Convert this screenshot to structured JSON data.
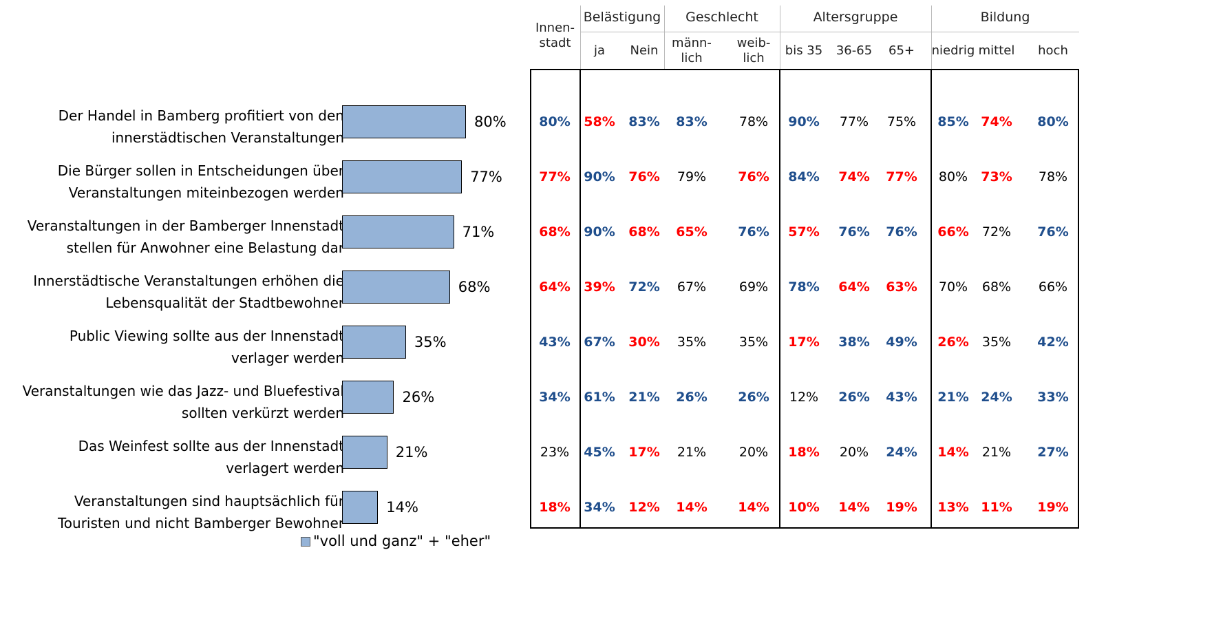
{
  "chart_data": {
    "type": "bar",
    "orientation": "horizontal",
    "categories": [
      "Der Handel in Bamberg profitiert von den\ninnerstädtischen Veranstaltungen",
      "Die Bürger sollen in Entscheidungen über\nVeranstaltungen miteinbezogen werden",
      "Veranstaltungen in der Bamberger Innenstadt\nstellen für Anwohner eine Belastung dar",
      "Innerstädtische Veranstaltungen erhöhen die\nLebensqualität der Stadtbewohner",
      "Public Viewing sollte aus der Innenstadt\nverlager werden",
      "Veranstaltungen wie das Jazz- und Bluefestival\nsollten verkürzt werden",
      "Das Weinfest sollte aus der Innenstadt\nverlagert werden",
      "Veranstaltungen sind hauptsächlich für\nTouristen und nicht Bamberger Bewohner"
    ],
    "series": [
      {
        "name": "\"voll und ganz\" + \"eher\"",
        "color": "#95b3d7",
        "values": [
          80,
          77,
          71,
          68,
          35,
          26,
          21,
          14
        ],
        "value_labels": [
          "80%",
          "77%",
          "71%",
          "68%",
          "35%",
          "26%",
          "21%",
          "14%"
        ]
      }
    ],
    "xlim": [
      -13,
      80
    ]
  },
  "table": {
    "corner": "Innen-\nstadt",
    "groups": [
      {
        "label": "Belästigung",
        "columns": [
          "ja",
          "Nein"
        ]
      },
      {
        "label": "Geschlecht",
        "columns": [
          "männ-\nlich",
          "weib-\nlich"
        ]
      },
      {
        "label": "Altersgruppe",
        "columns": [
          "bis 35",
          "36-65",
          "65+"
        ]
      },
      {
        "label": "Bildung",
        "columns": [
          "niedrig",
          "mittel",
          "hoch"
        ]
      }
    ],
    "rows": [
      [
        "80%",
        "58%",
        "83%",
        "83%",
        "78%",
        "90%",
        "77%",
        "75%",
        "85%",
        "74%",
        "80%"
      ],
      [
        "77%",
        "90%",
        "76%",
        "79%",
        "76%",
        "84%",
        "74%",
        "77%",
        "80%",
        "73%",
        "78%"
      ],
      [
        "68%",
        "90%",
        "68%",
        "65%",
        "76%",
        "57%",
        "76%",
        "76%",
        "66%",
        "72%",
        "76%"
      ],
      [
        "64%",
        "39%",
        "72%",
        "67%",
        "69%",
        "78%",
        "64%",
        "63%",
        "70%",
        "68%",
        "66%"
      ],
      [
        "43%",
        "67%",
        "30%",
        "35%",
        "35%",
        "17%",
        "38%",
        "49%",
        "26%",
        "35%",
        "42%"
      ],
      [
        "34%",
        "61%",
        "21%",
        "26%",
        "26%",
        "12%",
        "26%",
        "43%",
        "21%",
        "24%",
        "33%"
      ],
      [
        "23%",
        "45%",
        "17%",
        "21%",
        "20%",
        "18%",
        "20%",
        "24%",
        "14%",
        "21%",
        "27%"
      ],
      [
        "18%",
        "34%",
        "12%",
        "14%",
        "14%",
        "10%",
        "14%",
        "19%",
        "13%",
        "11%",
        "19%"
      ]
    ],
    "cell_colors": [
      [
        "#1f4e8c",
        "#ff0000",
        "#1f4e8c",
        "#1f4e8c",
        "#000000",
        "#1f4e8c",
        "#000000",
        "#000000",
        "#1f4e8c",
        "#ff0000",
        "#1f4e8c"
      ],
      [
        "#ff0000",
        "#1f4e8c",
        "#ff0000",
        "#000000",
        "#ff0000",
        "#1f4e8c",
        "#ff0000",
        "#ff0000",
        "#000000",
        "#ff0000",
        "#000000"
      ],
      [
        "#ff0000",
        "#1f4e8c",
        "#ff0000",
        "#ff0000",
        "#1f4e8c",
        "#ff0000",
        "#1f4e8c",
        "#1f4e8c",
        "#ff0000",
        "#000000",
        "#1f4e8c"
      ],
      [
        "#ff0000",
        "#ff0000",
        "#1f4e8c",
        "#000000",
        "#000000",
        "#1f4e8c",
        "#ff0000",
        "#ff0000",
        "#000000",
        "#000000",
        "#000000"
      ],
      [
        "#1f4e8c",
        "#1f4e8c",
        "#ff0000",
        "#000000",
        "#000000",
        "#ff0000",
        "#1f4e8c",
        "#1f4e8c",
        "#ff0000",
        "#000000",
        "#1f4e8c"
      ],
      [
        "#1f4e8c",
        "#1f4e8c",
        "#1f4e8c",
        "#1f4e8c",
        "#1f4e8c",
        "#000000",
        "#1f4e8c",
        "#1f4e8c",
        "#1f4e8c",
        "#1f4e8c",
        "#1f4e8c"
      ],
      [
        "#000000",
        "#1f4e8c",
        "#ff0000",
        "#000000",
        "#000000",
        "#ff0000",
        "#000000",
        "#1f4e8c",
        "#ff0000",
        "#000000",
        "#1f4e8c"
      ],
      [
        "#ff0000",
        "#1f4e8c",
        "#ff0000",
        "#ff0000",
        "#ff0000",
        "#ff0000",
        "#ff0000",
        "#ff0000",
        "#ff0000",
        "#ff0000",
        "#ff0000"
      ]
    ]
  }
}
